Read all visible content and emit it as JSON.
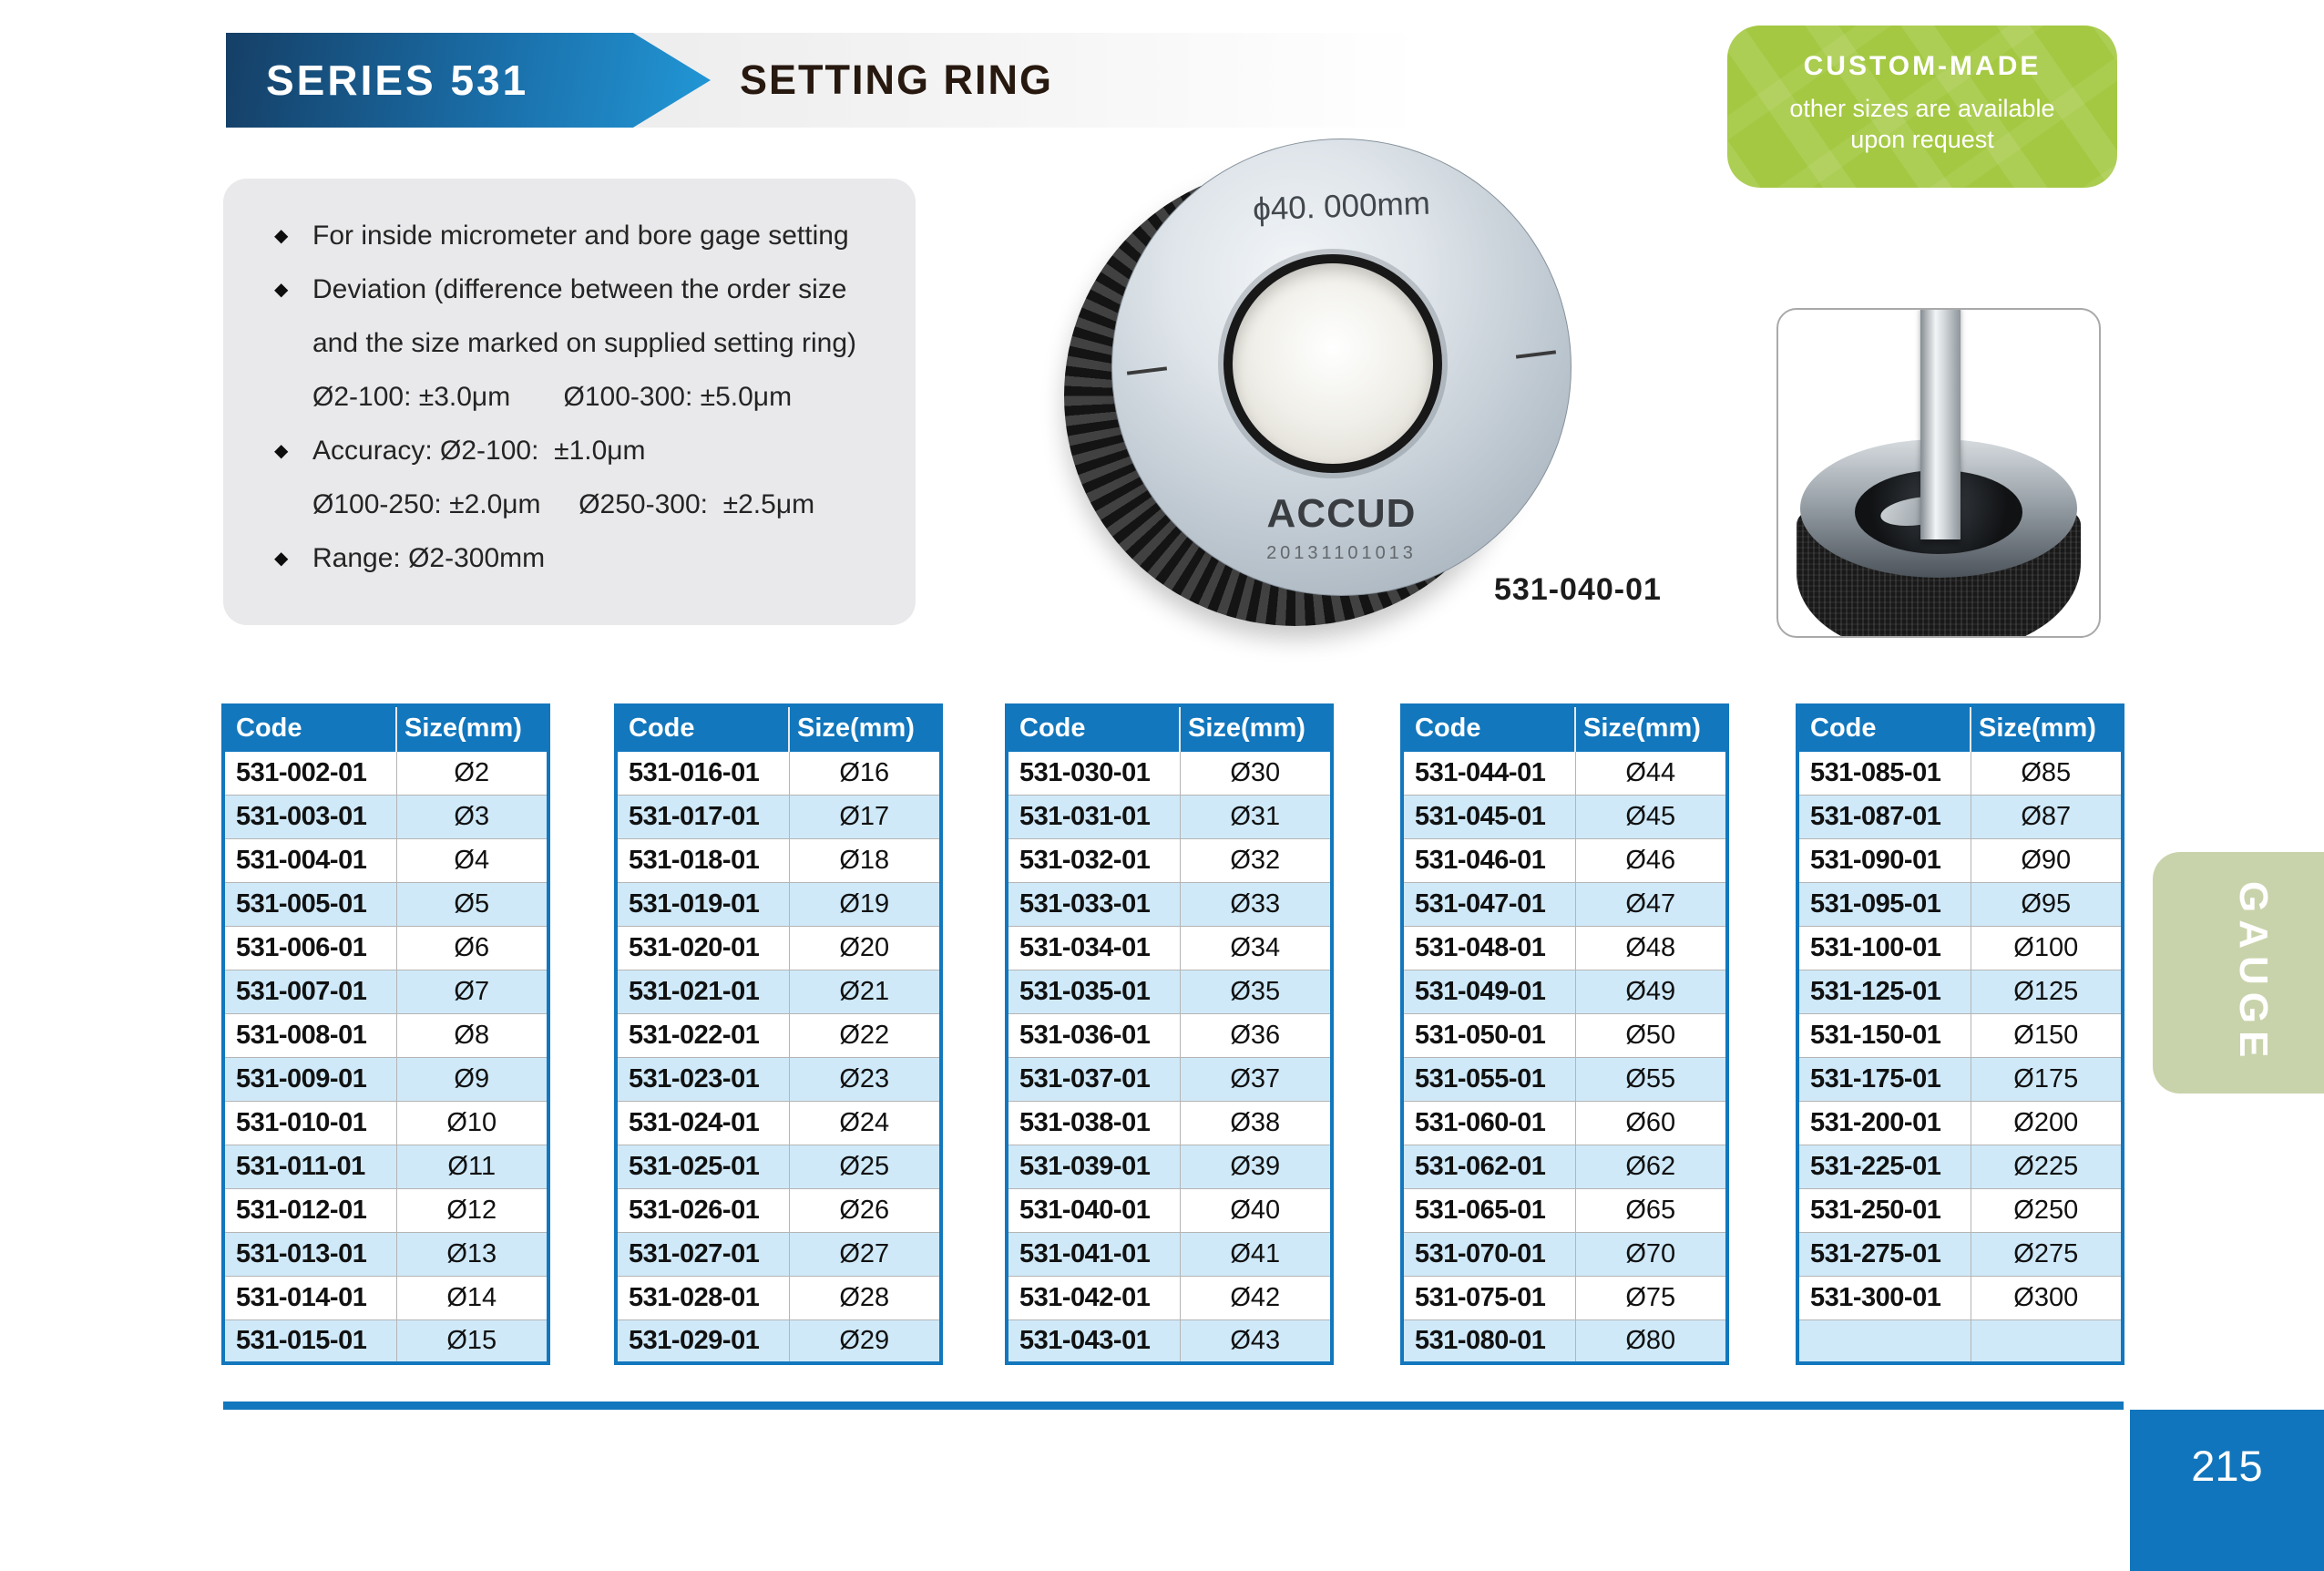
{
  "header": {
    "series": "SERIES 531",
    "title": "SETTING RING"
  },
  "badge": {
    "title": "CUSTOM-MADE",
    "line1": "other sizes are available",
    "line2": "upon request"
  },
  "features": [
    {
      "bullet": "◆",
      "text": "For inside micrometer and bore gage setting"
    },
    {
      "bullet": "◆",
      "text": "Deviation (difference between the order size"
    },
    {
      "bullet": "",
      "text": "and the size marked on supplied setting ring)"
    },
    {
      "bullet": "",
      "text": "Ø2-100: ±3.0μm       Ø100-300: ±5.0μm"
    },
    {
      "bullet": "◆",
      "text": "Accuracy: Ø2-100:  ±1.0μm"
    },
    {
      "bullet": "",
      "text": "Ø100-250: ±2.0μm     Ø250-300:  ±2.5μm"
    },
    {
      "bullet": "◆",
      "text": "Range: Ø2-300mm"
    }
  ],
  "product": {
    "ring_marking": "ϕ40. 000mm",
    "brand": "ACCUD",
    "serial": "20131101013",
    "code_label": "531-040-01"
  },
  "tables": [
    {
      "headers": [
        "Code",
        "Size(mm)"
      ],
      "rows": [
        [
          "531-002-01",
          "Ø2"
        ],
        [
          "531-003-01",
          "Ø3"
        ],
        [
          "531-004-01",
          "Ø4"
        ],
        [
          "531-005-01",
          "Ø5"
        ],
        [
          "531-006-01",
          "Ø6"
        ],
        [
          "531-007-01",
          "Ø7"
        ],
        [
          "531-008-01",
          "Ø8"
        ],
        [
          "531-009-01",
          "Ø9"
        ],
        [
          "531-010-01",
          "Ø10"
        ],
        [
          "531-011-01",
          "Ø11"
        ],
        [
          "531-012-01",
          "Ø12"
        ],
        [
          "531-013-01",
          "Ø13"
        ],
        [
          "531-014-01",
          "Ø14"
        ],
        [
          "531-015-01",
          "Ø15"
        ]
      ]
    },
    {
      "headers": [
        "Code",
        "Size(mm)"
      ],
      "rows": [
        [
          "531-016-01",
          "Ø16"
        ],
        [
          "531-017-01",
          "Ø17"
        ],
        [
          "531-018-01",
          "Ø18"
        ],
        [
          "531-019-01",
          "Ø19"
        ],
        [
          "531-020-01",
          "Ø20"
        ],
        [
          "531-021-01",
          "Ø21"
        ],
        [
          "531-022-01",
          "Ø22"
        ],
        [
          "531-023-01",
          "Ø23"
        ],
        [
          "531-024-01",
          "Ø24"
        ],
        [
          "531-025-01",
          "Ø25"
        ],
        [
          "531-026-01",
          "Ø26"
        ],
        [
          "531-027-01",
          "Ø27"
        ],
        [
          "531-028-01",
          "Ø28"
        ],
        [
          "531-029-01",
          "Ø29"
        ]
      ]
    },
    {
      "headers": [
        "Code",
        "Size(mm)"
      ],
      "rows": [
        [
          "531-030-01",
          "Ø30"
        ],
        [
          "531-031-01",
          "Ø31"
        ],
        [
          "531-032-01",
          "Ø32"
        ],
        [
          "531-033-01",
          "Ø33"
        ],
        [
          "531-034-01",
          "Ø34"
        ],
        [
          "531-035-01",
          "Ø35"
        ],
        [
          "531-036-01",
          "Ø36"
        ],
        [
          "531-037-01",
          "Ø37"
        ],
        [
          "531-038-01",
          "Ø38"
        ],
        [
          "531-039-01",
          "Ø39"
        ],
        [
          "531-040-01",
          "Ø40"
        ],
        [
          "531-041-01",
          "Ø41"
        ],
        [
          "531-042-01",
          "Ø42"
        ],
        [
          "531-043-01",
          "Ø43"
        ]
      ]
    },
    {
      "headers": [
        "Code",
        "Size(mm)"
      ],
      "rows": [
        [
          "531-044-01",
          "Ø44"
        ],
        [
          "531-045-01",
          "Ø45"
        ],
        [
          "531-046-01",
          "Ø46"
        ],
        [
          "531-047-01",
          "Ø47"
        ],
        [
          "531-048-01",
          "Ø48"
        ],
        [
          "531-049-01",
          "Ø49"
        ],
        [
          "531-050-01",
          "Ø50"
        ],
        [
          "531-055-01",
          "Ø55"
        ],
        [
          "531-060-01",
          "Ø60"
        ],
        [
          "531-062-01",
          "Ø62"
        ],
        [
          "531-065-01",
          "Ø65"
        ],
        [
          "531-070-01",
          "Ø70"
        ],
        [
          "531-075-01",
          "Ø75"
        ],
        [
          "531-080-01",
          "Ø80"
        ]
      ]
    },
    {
      "headers": [
        "Code",
        "Size(mm)"
      ],
      "rows": [
        [
          "531-085-01",
          "Ø85"
        ],
        [
          "531-087-01",
          "Ø87"
        ],
        [
          "531-090-01",
          "Ø90"
        ],
        [
          "531-095-01",
          "Ø95"
        ],
        [
          "531-100-01",
          "Ø100"
        ],
        [
          "531-125-01",
          "Ø125"
        ],
        [
          "531-150-01",
          "Ø150"
        ],
        [
          "531-175-01",
          "Ø175"
        ],
        [
          "531-200-01",
          "Ø200"
        ],
        [
          "531-225-01",
          "Ø225"
        ],
        [
          "531-250-01",
          "Ø250"
        ],
        [
          "531-275-01",
          "Ø275"
        ],
        [
          "531-300-01",
          "Ø300"
        ],
        [
          "",
          ""
        ]
      ]
    }
  ],
  "side_tab": {
    "label": "GAUGE"
  },
  "footer": {
    "page_number": "215"
  },
  "colors": {
    "accent_blue": "#1277bd",
    "banner_blue_dark": "#16486f",
    "banner_blue_light": "#2196d4",
    "badge_green": "#a4c842",
    "tab_green": "#c9d3ab",
    "row_alt_blue": "#cfe9f9",
    "page_box_blue": "#1075bc"
  }
}
